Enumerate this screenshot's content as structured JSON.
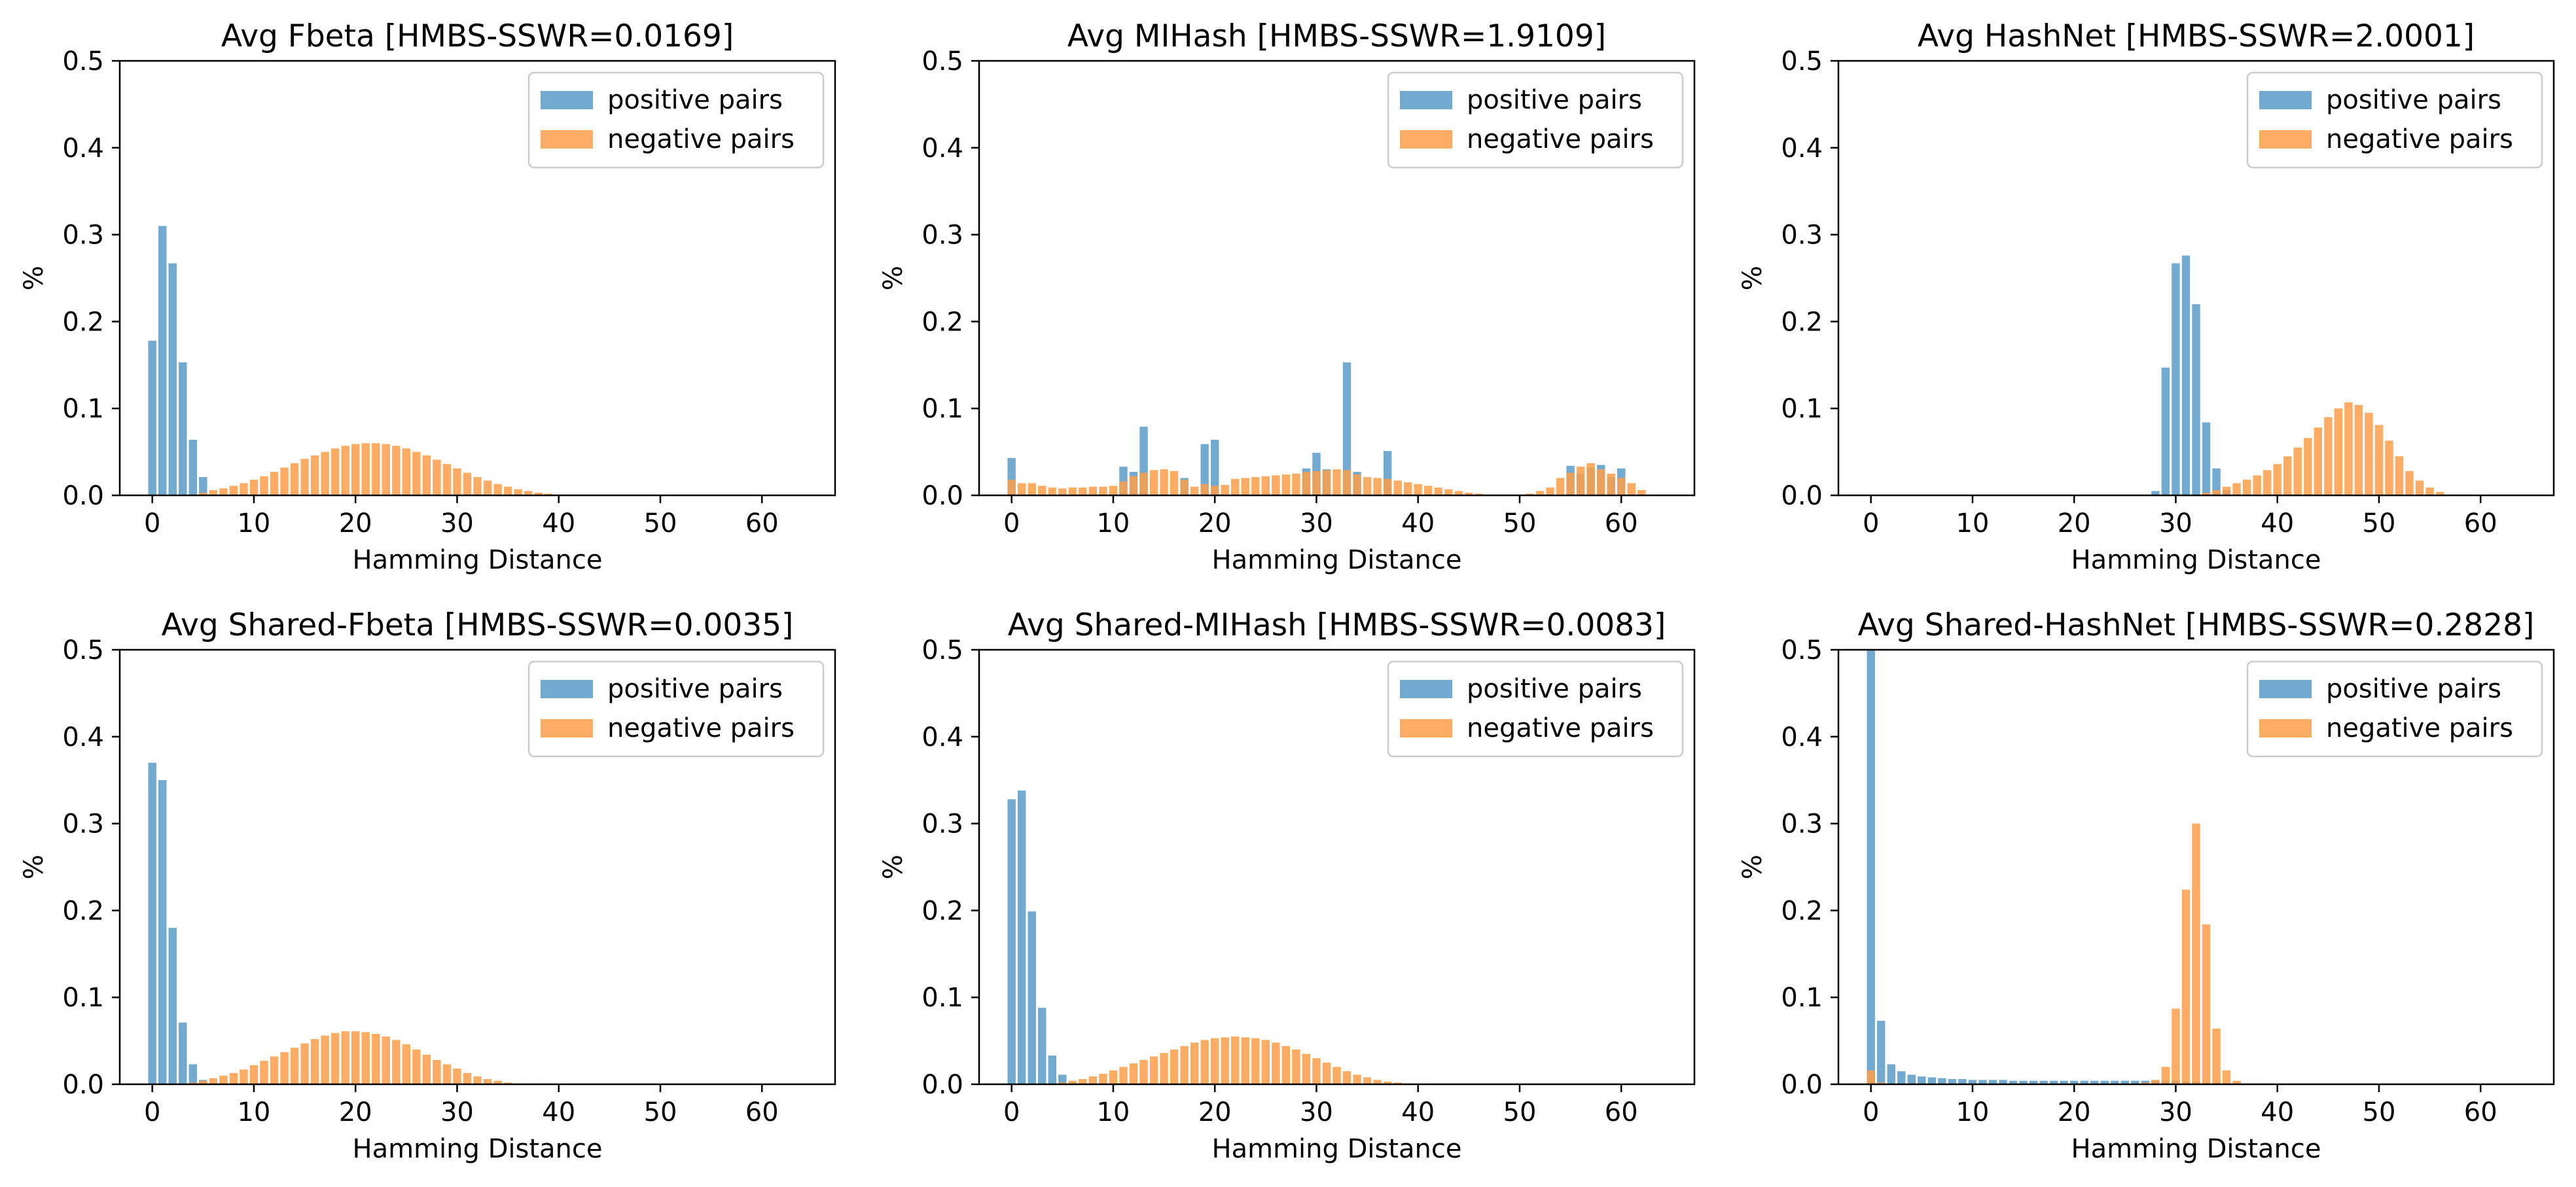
{
  "chart_data": [
    {
      "type": "bar",
      "title": "Avg Fbeta [HMBS-SSWR=0.0169]",
      "xlabel": "Hamming Distance",
      "ylabel": "%",
      "xlim": [
        -3.2,
        67.2
      ],
      "ylim": [
        0,
        0.5
      ],
      "xticks": [
        "0",
        "10",
        "20",
        "30",
        "40",
        "50",
        "60"
      ],
      "yticks": [
        "0.0",
        "0.1",
        "0.2",
        "0.3",
        "0.4",
        "0.5"
      ],
      "legend": "upper-right",
      "colors": {
        "positive": "#5b9bc8",
        "negative": "#fd9f48"
      },
      "series": [
        {
          "name": "positive pairs",
          "x": [
            0,
            1,
            2,
            3,
            4,
            5
          ],
          "values": [
            0.178,
            0.31,
            0.267,
            0.153,
            0.064,
            0.021
          ]
        },
        {
          "name": "negative pairs",
          "x": [
            4,
            5,
            6,
            7,
            8,
            9,
            10,
            11,
            12,
            13,
            14,
            15,
            16,
            17,
            18,
            19,
            20,
            21,
            22,
            23,
            24,
            25,
            26,
            27,
            28,
            29,
            30,
            31,
            32,
            33,
            34,
            35,
            36,
            37,
            38,
            39,
            40
          ],
          "values": [
            0.001,
            0.003,
            0.006,
            0.008,
            0.011,
            0.014,
            0.018,
            0.022,
            0.027,
            0.032,
            0.037,
            0.042,
            0.046,
            0.05,
            0.054,
            0.057,
            0.059,
            0.06,
            0.06,
            0.059,
            0.057,
            0.054,
            0.05,
            0.046,
            0.041,
            0.036,
            0.031,
            0.026,
            0.021,
            0.017,
            0.013,
            0.01,
            0.007,
            0.005,
            0.003,
            0.002,
            0.001
          ]
        }
      ]
    },
    {
      "type": "bar",
      "title": "Avg MIHash [HMBS-SSWR=1.9109]",
      "xlabel": "Hamming Distance",
      "ylabel": "%",
      "xlim": [
        -3.2,
        67.2
      ],
      "ylim": [
        0,
        0.5
      ],
      "xticks": [
        "0",
        "10",
        "20",
        "30",
        "40",
        "50",
        "60"
      ],
      "yticks": [
        "0.0",
        "0.1",
        "0.2",
        "0.3",
        "0.4",
        "0.5"
      ],
      "legend": "upper-right",
      "colors": {
        "positive": "#5b9bc8",
        "negative": "#fd9f48"
      },
      "series": [
        {
          "name": "positive pairs",
          "x": [
            0,
            11,
            12,
            13,
            17,
            19,
            20,
            29,
            30,
            31,
            33,
            34,
            37,
            55,
            56,
            57,
            58,
            59,
            60
          ],
          "values": [
            0.043,
            0.033,
            0.027,
            0.079,
            0.02,
            0.059,
            0.064,
            0.031,
            0.049,
            0.03,
            0.153,
            0.027,
            0.051,
            0.034,
            0.025,
            0.032,
            0.035,
            0.021,
            0.031
          ]
        },
        {
          "name": "negative pairs",
          "x": [
            0,
            1,
            2,
            3,
            4,
            5,
            6,
            7,
            8,
            9,
            10,
            11,
            12,
            13,
            14,
            15,
            16,
            17,
            18,
            19,
            20,
            21,
            22,
            23,
            24,
            25,
            26,
            27,
            28,
            29,
            30,
            31,
            32,
            33,
            34,
            35,
            36,
            37,
            38,
            39,
            40,
            41,
            42,
            43,
            44,
            45,
            46,
            47,
            48,
            49,
            50,
            51,
            52,
            53,
            54,
            55,
            56,
            57,
            58,
            59,
            60,
            61,
            62
          ],
          "values": [
            0.018,
            0.014,
            0.014,
            0.011,
            0.009,
            0.008,
            0.009,
            0.009,
            0.01,
            0.01,
            0.011,
            0.016,
            0.022,
            0.026,
            0.029,
            0.03,
            0.028,
            0.018,
            0.01,
            0.013,
            0.011,
            0.012,
            0.019,
            0.02,
            0.021,
            0.022,
            0.023,
            0.024,
            0.025,
            0.027,
            0.028,
            0.029,
            0.03,
            0.029,
            0.024,
            0.021,
            0.02,
            0.019,
            0.017,
            0.015,
            0.013,
            0.011,
            0.009,
            0.007,
            0.005,
            0.003,
            0.002,
            0.001,
            0.001,
            0.001,
            0.001,
            0.002,
            0.005,
            0.009,
            0.02,
            0.026,
            0.033,
            0.037,
            0.03,
            0.025,
            0.02,
            0.014,
            0.006
          ]
        }
      ]
    },
    {
      "type": "bar",
      "title": "Avg HashNet [HMBS-SSWR=2.0001]",
      "xlabel": "Hamming Distance",
      "ylabel": "%",
      "xlim": [
        -3.2,
        67.2
      ],
      "ylim": [
        0,
        0.5
      ],
      "xticks": [
        "0",
        "10",
        "20",
        "30",
        "40",
        "50",
        "60"
      ],
      "yticks": [
        "0.0",
        "0.1",
        "0.2",
        "0.3",
        "0.4",
        "0.5"
      ],
      "legend": "upper-right",
      "colors": {
        "positive": "#5b9bc8",
        "negative": "#fd9f48"
      },
      "series": [
        {
          "name": "positive pairs",
          "x": [
            28,
            29,
            30,
            31,
            32,
            33,
            34,
            35
          ],
          "values": [
            0.005,
            0.147,
            0.267,
            0.276,
            0.22,
            0.084,
            0.031,
            0.006
          ]
        },
        {
          "name": "negative pairs",
          "x": [
            33,
            34,
            35,
            36,
            37,
            38,
            39,
            40,
            41,
            42,
            43,
            44,
            45,
            46,
            47,
            48,
            49,
            50,
            51,
            52,
            53,
            54,
            55,
            56,
            57
          ],
          "values": [
            0.003,
            0.006,
            0.01,
            0.014,
            0.018,
            0.023,
            0.029,
            0.036,
            0.045,
            0.055,
            0.066,
            0.078,
            0.09,
            0.1,
            0.107,
            0.104,
            0.095,
            0.081,
            0.063,
            0.045,
            0.028,
            0.017,
            0.009,
            0.004,
            0.001
          ]
        }
      ]
    },
    {
      "type": "bar",
      "title": "Avg Shared-Fbeta [HMBS-SSWR=0.0035]",
      "xlabel": "Hamming Distance",
      "ylabel": "%",
      "xlim": [
        -3.2,
        67.2
      ],
      "ylim": [
        0,
        0.5
      ],
      "xticks": [
        "0",
        "10",
        "20",
        "30",
        "40",
        "50",
        "60"
      ],
      "yticks": [
        "0.0",
        "0.1",
        "0.2",
        "0.3",
        "0.4",
        "0.5"
      ],
      "legend": "upper-right",
      "colors": {
        "positive": "#5b9bc8",
        "negative": "#fd9f48"
      },
      "series": [
        {
          "name": "positive pairs",
          "x": [
            0,
            1,
            2,
            3,
            4,
            5
          ],
          "values": [
            0.37,
            0.35,
            0.18,
            0.071,
            0.023,
            0.005
          ]
        },
        {
          "name": "negative pairs",
          "x": [
            4,
            5,
            6,
            7,
            8,
            9,
            10,
            11,
            12,
            13,
            14,
            15,
            16,
            17,
            18,
            19,
            20,
            21,
            22,
            23,
            24,
            25,
            26,
            27,
            28,
            29,
            30,
            31,
            32,
            33,
            34,
            35,
            36,
            37,
            38
          ],
          "values": [
            0.002,
            0.004,
            0.007,
            0.01,
            0.013,
            0.017,
            0.022,
            0.027,
            0.032,
            0.037,
            0.042,
            0.047,
            0.052,
            0.056,
            0.059,
            0.061,
            0.061,
            0.06,
            0.058,
            0.055,
            0.051,
            0.046,
            0.04,
            0.034,
            0.028,
            0.023,
            0.018,
            0.013,
            0.009,
            0.006,
            0.004,
            0.002,
            0.001,
            0.001,
            0.001
          ]
        }
      ]
    },
    {
      "type": "bar",
      "title": "Avg Shared-MIHash [HMBS-SSWR=0.0083]",
      "xlabel": "Hamming Distance",
      "ylabel": "%",
      "xlim": [
        -3.2,
        67.2
      ],
      "ylim": [
        0,
        0.5
      ],
      "xticks": [
        "0",
        "10",
        "20",
        "30",
        "40",
        "50",
        "60"
      ],
      "yticks": [
        "0.0",
        "0.1",
        "0.2",
        "0.3",
        "0.4",
        "0.5"
      ],
      "legend": "upper-right",
      "colors": {
        "positive": "#5b9bc8",
        "negative": "#fd9f48"
      },
      "series": [
        {
          "name": "positive pairs",
          "x": [
            0,
            1,
            2,
            3,
            4,
            5
          ],
          "values": [
            0.328,
            0.338,
            0.199,
            0.088,
            0.033,
            0.011
          ]
        },
        {
          "name": "negative pairs",
          "x": [
            5,
            6,
            7,
            8,
            9,
            10,
            11,
            12,
            13,
            14,
            15,
            16,
            17,
            18,
            19,
            20,
            21,
            22,
            23,
            24,
            25,
            26,
            27,
            28,
            29,
            30,
            31,
            32,
            33,
            34,
            35,
            36,
            37,
            38,
            39,
            40,
            41
          ],
          "values": [
            0.002,
            0.004,
            0.006,
            0.009,
            0.012,
            0.016,
            0.02,
            0.024,
            0.028,
            0.032,
            0.036,
            0.04,
            0.044,
            0.048,
            0.051,
            0.053,
            0.054,
            0.055,
            0.054,
            0.053,
            0.051,
            0.048,
            0.044,
            0.04,
            0.035,
            0.03,
            0.025,
            0.02,
            0.015,
            0.011,
            0.008,
            0.005,
            0.003,
            0.002,
            0.001,
            0.001,
            0.001
          ]
        }
      ]
    },
    {
      "type": "bar",
      "title": "Avg Shared-HashNet [HMBS-SSWR=0.2828]",
      "xlabel": "Hamming Distance",
      "ylabel": "%",
      "xlim": [
        -3.2,
        67.2
      ],
      "ylim": [
        0,
        0.5
      ],
      "xticks": [
        "0",
        "10",
        "20",
        "30",
        "40",
        "50",
        "60"
      ],
      "yticks": [
        "0.0",
        "0.1",
        "0.2",
        "0.3",
        "0.4",
        "0.5"
      ],
      "legend": "upper-right",
      "colors": {
        "positive": "#5b9bc8",
        "negative": "#fd9f48"
      },
      "series": [
        {
          "name": "positive pairs",
          "x": [
            0,
            1,
            2,
            3,
            4,
            5,
            6,
            7,
            8,
            9,
            10,
            11,
            12,
            13,
            14,
            15,
            16,
            17,
            18,
            19,
            20,
            21,
            22,
            23,
            24,
            25,
            26,
            27,
            28,
            29,
            30,
            31,
            32,
            33,
            34,
            35,
            36
          ],
          "values": [
            0.5,
            0.073,
            0.023,
            0.015,
            0.011,
            0.009,
            0.008,
            0.007,
            0.006,
            0.006,
            0.005,
            0.005,
            0.005,
            0.005,
            0.004,
            0.004,
            0.004,
            0.004,
            0.004,
            0.004,
            0.004,
            0.004,
            0.004,
            0.004,
            0.004,
            0.004,
            0.004,
            0.004,
            0.004,
            0.004,
            0.004,
            0.003,
            0.003,
            0.002,
            0.002,
            0.001,
            0.001
          ]
        },
        {
          "name": "negative pairs",
          "x": [
            0,
            1,
            26,
            27,
            28,
            29,
            30,
            31,
            32,
            33,
            34,
            35,
            36,
            37,
            38
          ],
          "values": [
            0.016,
            0.002,
            0.001,
            0.002,
            0.005,
            0.02,
            0.087,
            0.224,
            0.3,
            0.184,
            0.064,
            0.016,
            0.004,
            0.001,
            0.001
          ]
        }
      ]
    }
  ]
}
